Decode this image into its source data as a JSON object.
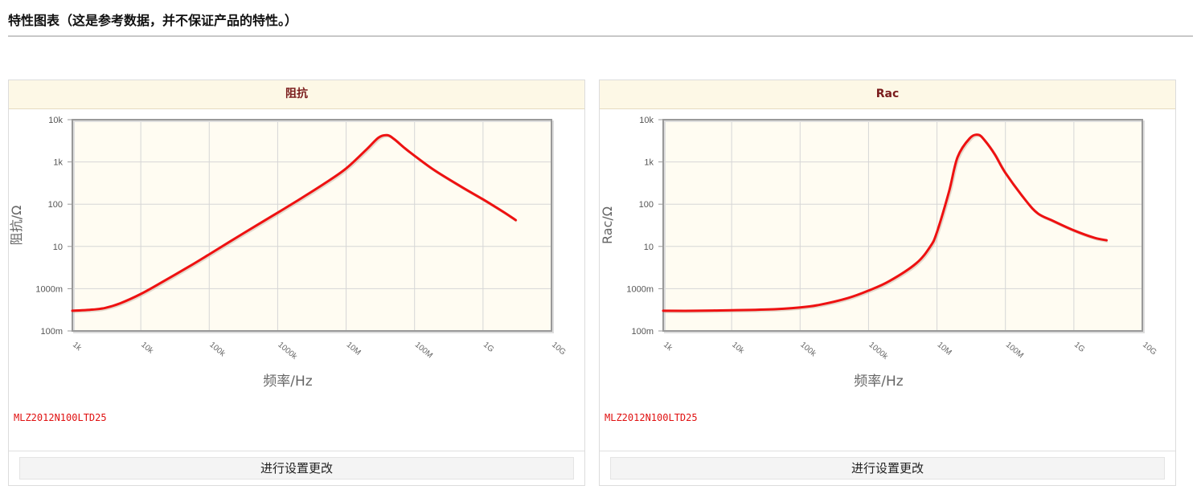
{
  "page": {
    "title": "特性图表（这是参考数据，并不保证产品的特性。）"
  },
  "panels": [
    {
      "header": "阻抗",
      "part_number": "MLZ2012N100LTD25",
      "button_label": "进行设置更改"
    },
    {
      "header": "Rac",
      "part_number": "MLZ2012N100LTD25",
      "button_label": "进行设置更改"
    }
  ],
  "colors": {
    "curve": "#ee1111",
    "plot_background": "#fffcf2",
    "grid": "#d6d6d6",
    "axis": "#999999",
    "header_background": "#fdf8e6",
    "header_text": "#7a1c1c",
    "part_number": "#e01010"
  },
  "chart_data": [
    {
      "type": "line",
      "title": "阻抗",
      "xlabel": "频率/Hz",
      "ylabel": "阻抗/Ω",
      "x_scale": "log",
      "y_scale": "log",
      "xlim": [
        1000,
        10000000000
      ],
      "ylim": [
        0.1,
        10000
      ],
      "x_ticks": [
        1000,
        10000,
        100000,
        1000000,
        10000000,
        100000000,
        1000000000,
        10000000000
      ],
      "x_tick_labels": [
        "1k",
        "10k",
        "100k",
        "1000k",
        "10M",
        "100M",
        "1G",
        "10G"
      ],
      "y_ticks": [
        0.1,
        1,
        10,
        100,
        1000,
        10000
      ],
      "y_tick_labels": [
        "100m",
        "1000m",
        "10",
        "100",
        "1k",
        "10k"
      ],
      "grid": true,
      "series": [
        {
          "color": "#ee1111",
          "x": [
            1000,
            2000,
            3000,
            5000,
            10000,
            20000,
            50000,
            100000,
            200000,
            500000,
            1000000,
            2000000,
            5000000,
            10000000,
            20000000,
            30000000,
            40000000,
            50000000,
            70000000,
            100000000,
            200000000,
            500000000,
            1000000000,
            2000000000,
            3000000000
          ],
          "y": [
            0.3,
            0.32,
            0.35,
            0.45,
            0.75,
            1.4,
            3.3,
            6.5,
            13,
            32,
            63,
            125,
            320,
            700,
            2000,
            3800,
            4300,
            3500,
            2200,
            1400,
            620,
            250,
            130,
            65,
            42
          ]
        }
      ]
    },
    {
      "type": "line",
      "title": "Rac",
      "xlabel": "频率/Hz",
      "ylabel": "Rac/Ω",
      "x_scale": "log",
      "y_scale": "log",
      "xlim": [
        1000,
        10000000000
      ],
      "ylim": [
        0.1,
        10000
      ],
      "x_ticks": [
        1000,
        10000,
        100000,
        1000000,
        10000000,
        100000000,
        1000000000,
        10000000000
      ],
      "x_tick_labels": [
        "1k",
        "10k",
        "100k",
        "1000k",
        "10M",
        "100M",
        "1G",
        "10G"
      ],
      "y_ticks": [
        0.1,
        1,
        10,
        100,
        1000,
        10000
      ],
      "y_tick_labels": [
        "100m",
        "1000m",
        "10",
        "100",
        "1k",
        "10k"
      ],
      "grid": true,
      "series": [
        {
          "color": "#ee1111",
          "x": [
            1000,
            3000,
            10000,
            30000,
            100000,
            200000,
            500000,
            1000000,
            2000000,
            5000000,
            8000000,
            10000000,
            15000000,
            20000000,
            30000000,
            40000000,
            50000000,
            70000000,
            100000000,
            200000000,
            300000000,
            500000000,
            1000000000,
            2000000000,
            3000000000
          ],
          "y": [
            0.3,
            0.3,
            0.31,
            0.32,
            0.36,
            0.42,
            0.6,
            0.9,
            1.5,
            4,
            10,
            22,
            200,
            1300,
            3600,
            4400,
            3200,
            1500,
            550,
            120,
            60,
            40,
            24,
            16,
            14
          ]
        }
      ]
    }
  ]
}
